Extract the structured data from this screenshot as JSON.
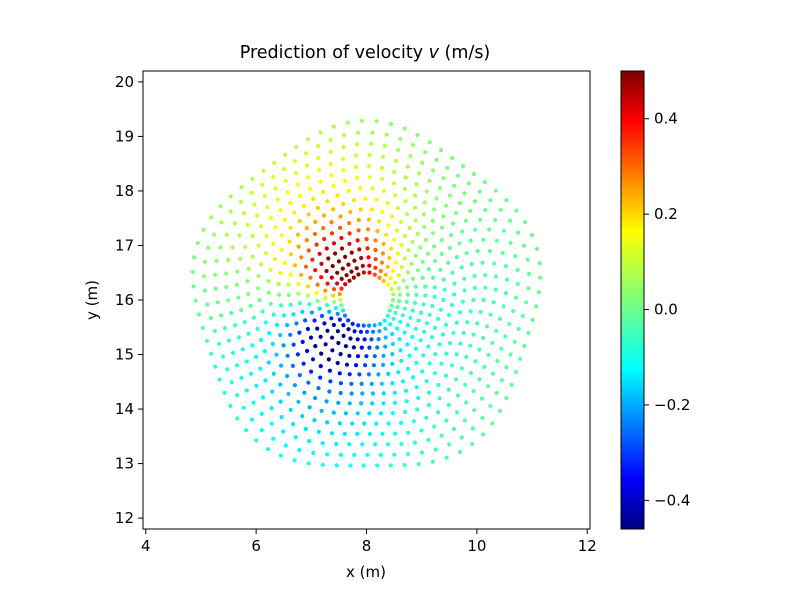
{
  "chart_data": {
    "type": "scatter",
    "title_prefix": "Prediction of velocity ",
    "title_var": "v",
    "title_suffix": " (m/s)",
    "xlabel": "x (m)",
    "ylabel": "y (m)",
    "xlim": [
      3.95,
      12.05
    ],
    "ylim": [
      11.8,
      20.2
    ],
    "xticks": [
      4,
      6,
      8,
      10,
      12
    ],
    "yticks": [
      12,
      13,
      14,
      15,
      16,
      17,
      18,
      19,
      20
    ],
    "colormap": "jet",
    "color_range": [
      -0.46,
      0.5
    ],
    "colorbar_ticks": [
      0.4,
      0.2,
      0.0,
      -0.2,
      -0.4
    ],
    "colorbar_tick_labels": [
      "0.4",
      "0.2",
      "0.0",
      "−0.2",
      "−0.4"
    ],
    "field": {
      "center": [
        8.0,
        16.0
      ],
      "inner_radius_m": 0.48,
      "outer_radius_m": 3.1,
      "positive_peak": [
        7.6,
        16.5
      ],
      "negative_peak": [
        7.4,
        15.35
      ]
    }
  }
}
